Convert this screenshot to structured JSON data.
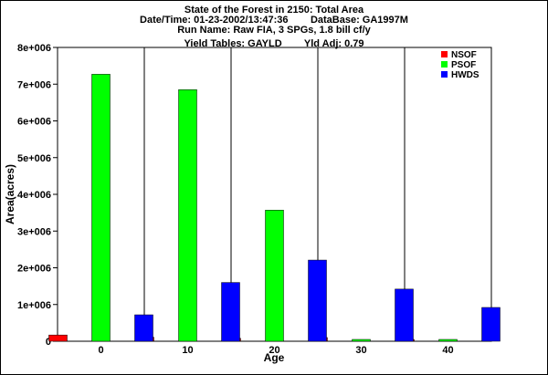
{
  "header": {
    "line1": "State of the Forest in 2150: Total Area",
    "line2": "Date/Time: 01-23-2002/13:47:36        DataBase: GA1997M",
    "line3": "Run Name: Raw FIA, 3 SPGs, 1.8 bill cf/y",
    "line4": "Yield Tables: GAYLD        Yld Adj: 0.79"
  },
  "chart_data": {
    "type": "bar",
    "xlabel": "Age",
    "ylabel": "Area(acres)",
    "ylim": [
      0,
      8000000
    ],
    "yticks": [
      {
        "value": 0,
        "label": "0"
      },
      {
        "value": 1000000,
        "label": "1e+006"
      },
      {
        "value": 2000000,
        "label": "2e+006"
      },
      {
        "value": 3000000,
        "label": "3e+006"
      },
      {
        "value": 4000000,
        "label": "4e+006"
      },
      {
        "value": 5000000,
        "label": "5e+006"
      },
      {
        "value": 6000000,
        "label": "6e+006"
      },
      {
        "value": 7000000,
        "label": "7e+006"
      },
      {
        "value": 8000000,
        "label": "8e+006"
      }
    ],
    "categories": [
      "0",
      "10",
      "20",
      "30",
      "40"
    ],
    "series": [
      {
        "name": "NSOF",
        "color": "#ff0000",
        "values": [
          170000,
          110000,
          80000,
          100000,
          10000
        ]
      },
      {
        "name": "PSOF",
        "color": "#00ff00",
        "values": [
          7270000,
          6850000,
          3570000,
          20000,
          10000
        ]
      },
      {
        "name": "HWDS",
        "color": "#0000ff",
        "values": [
          720000,
          1600000,
          2210000,
          1420000,
          920000
        ]
      }
    ],
    "legend_position": "top-right",
    "grid": "vertical"
  }
}
